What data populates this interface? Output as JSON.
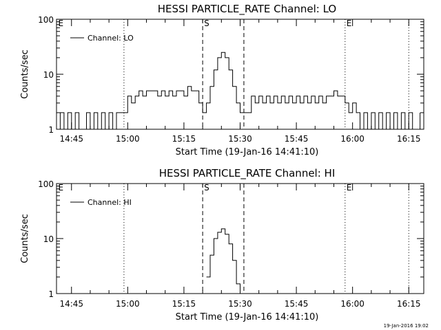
{
  "footer": {
    "timestamp": "19-Jan-2016 19:02"
  },
  "chart_data": [
    {
      "type": "line",
      "title": "HESSI PARTICLE_RATE Channel: LO",
      "xlabel": "Start Time (19-Jan-16 14:41:10)",
      "ylabel": "Counts/sec",
      "yscale": "log",
      "ylim": [
        1,
        100
      ],
      "xlim": [
        "14:41",
        "16:19"
      ],
      "x_ticks": [
        "14:45",
        "15:00",
        "15:15",
        "15:30",
        "15:45",
        "16:00",
        "16:15"
      ],
      "y_ticks": [
        "1",
        "10",
        "100"
      ],
      "legend": {
        "position": "top-left",
        "entries": [
          "Channel: LO"
        ]
      },
      "markers": [
        {
          "label": "E",
          "time": "14:41",
          "style": "dotted"
        },
        {
          "label": "",
          "time": "14:59",
          "style": "dotted"
        },
        {
          "label": "S",
          "time": "15:20",
          "style": "dashed"
        },
        {
          "label": "",
          "time": "15:31",
          "style": "dashed"
        },
        {
          "label": "E",
          "time": "15:58",
          "style": "dotted"
        },
        {
          "label": "",
          "time": "16:15",
          "style": "dotted"
        }
      ],
      "series": [
        {
          "name": "Channel: LO",
          "points": [
            [
              "14:41",
              1
            ],
            [
              "14:42",
              2
            ],
            [
              "14:43",
              1
            ],
            [
              "14:44",
              2
            ],
            [
              "14:45",
              1
            ],
            [
              "14:46",
              2
            ],
            [
              "14:47",
              1
            ],
            [
              "14:48",
              1
            ],
            [
              "14:49",
              2
            ],
            [
              "14:50",
              1
            ],
            [
              "14:51",
              2
            ],
            [
              "14:52",
              1
            ],
            [
              "14:53",
              2
            ],
            [
              "14:54",
              1
            ],
            [
              "14:55",
              2
            ],
            [
              "14:56",
              1
            ],
            [
              "14:57",
              2
            ],
            [
              "14:58",
              2
            ],
            [
              "14:59",
              2
            ],
            [
              "15:00",
              4
            ],
            [
              "15:01",
              3
            ],
            [
              "15:02",
              4
            ],
            [
              "15:03",
              5
            ],
            [
              "15:04",
              4
            ],
            [
              "15:05",
              5
            ],
            [
              "15:06",
              5
            ],
            [
              "15:07",
              5
            ],
            [
              "15:08",
              4
            ],
            [
              "15:09",
              5
            ],
            [
              "15:10",
              4
            ],
            [
              "15:11",
              5
            ],
            [
              "15:12",
              4
            ],
            [
              "15:13",
              5
            ],
            [
              "15:14",
              5
            ],
            [
              "15:15",
              4
            ],
            [
              "15:16",
              6
            ],
            [
              "15:17",
              5
            ],
            [
              "15:18",
              5
            ],
            [
              "15:19",
              3
            ],
            [
              "15:20",
              2
            ],
            [
              "15:21",
              3
            ],
            [
              "15:22",
              6
            ],
            [
              "15:23",
              12
            ],
            [
              "15:24",
              20
            ],
            [
              "15:25",
              25
            ],
            [
              "15:26",
              20
            ],
            [
              "15:27",
              12
            ],
            [
              "15:28",
              6
            ],
            [
              "15:29",
              3
            ],
            [
              "15:30",
              2
            ],
            [
              "15:31",
              2
            ],
            [
              "15:32",
              2
            ],
            [
              "15:33",
              4
            ],
            [
              "15:34",
              3
            ],
            [
              "15:35",
              4
            ],
            [
              "15:36",
              3
            ],
            [
              "15:37",
              4
            ],
            [
              "15:38",
              3
            ],
            [
              "15:39",
              4
            ],
            [
              "15:40",
              3
            ],
            [
              "15:41",
              4
            ],
            [
              "15:42",
              3
            ],
            [
              "15:43",
              4
            ],
            [
              "15:44",
              3
            ],
            [
              "15:45",
              4
            ],
            [
              "15:46",
              3
            ],
            [
              "15:47",
              4
            ],
            [
              "15:48",
              3
            ],
            [
              "15:49",
              4
            ],
            [
              "15:50",
              3
            ],
            [
              "15:51",
              4
            ],
            [
              "15:52",
              3
            ],
            [
              "15:53",
              4
            ],
            [
              "15:54",
              4
            ],
            [
              "15:55",
              5
            ],
            [
              "15:56",
              4
            ],
            [
              "15:57",
              4
            ],
            [
              "15:58",
              3
            ],
            [
              "15:59",
              2
            ],
            [
              "16:00",
              3
            ],
            [
              "16:01",
              2
            ],
            [
              "16:02",
              1
            ],
            [
              "16:03",
              2
            ],
            [
              "16:04",
              1
            ],
            [
              "16:05",
              2
            ],
            [
              "16:06",
              1
            ],
            [
              "16:07",
              2
            ],
            [
              "16:08",
              1
            ],
            [
              "16:09",
              2
            ],
            [
              "16:10",
              1
            ],
            [
              "16:11",
              2
            ],
            [
              "16:12",
              1
            ],
            [
              "16:13",
              2
            ],
            [
              "16:14",
              1
            ],
            [
              "16:15",
              2
            ],
            [
              "16:16",
              1
            ],
            [
              "16:17",
              1
            ],
            [
              "16:18",
              2
            ]
          ]
        }
      ]
    },
    {
      "type": "line",
      "title": "HESSI PARTICLE_RATE Channel: HI",
      "xlabel": "Start Time (19-Jan-16 14:41:10)",
      "ylabel": "Counts/sec",
      "yscale": "log",
      "ylim": [
        1,
        100
      ],
      "xlim": [
        "14:41",
        "16:19"
      ],
      "x_ticks": [
        "14:45",
        "15:00",
        "15:15",
        "15:30",
        "15:45",
        "16:00",
        "16:15"
      ],
      "y_ticks": [
        "1",
        "10",
        "100"
      ],
      "legend": {
        "position": "top-left",
        "entries": [
          "Channel: HI"
        ]
      },
      "markers": [
        {
          "label": "E",
          "time": "14:41",
          "style": "dotted"
        },
        {
          "label": "",
          "time": "14:59",
          "style": "dotted"
        },
        {
          "label": "S",
          "time": "15:20",
          "style": "dashed"
        },
        {
          "label": "",
          "time": "15:31",
          "style": "dashed"
        },
        {
          "label": "E",
          "time": "15:58",
          "style": "dotted"
        },
        {
          "label": "",
          "time": "16:15",
          "style": "dotted"
        }
      ],
      "series": [
        {
          "name": "Channel: HI",
          "points": [
            [
              "15:21",
              2
            ],
            [
              "15:22",
              5
            ],
            [
              "15:23",
              10
            ],
            [
              "15:24",
              13
            ],
            [
              "15:25",
              15
            ],
            [
              "15:26",
              12
            ],
            [
              "15:27",
              8
            ],
            [
              "15:28",
              4
            ],
            [
              "15:29",
              1.5
            ],
            [
              "15:30",
              1
            ]
          ]
        }
      ]
    }
  ]
}
